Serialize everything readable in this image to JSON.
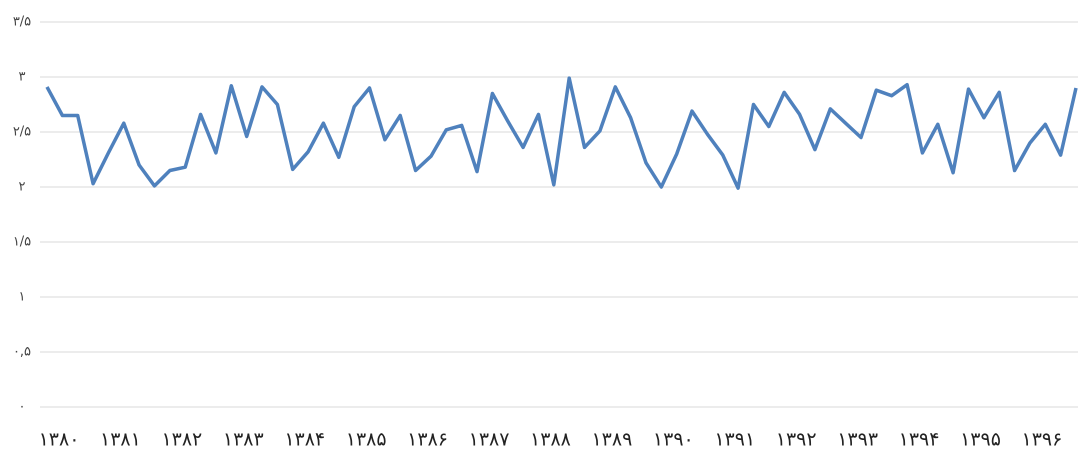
{
  "chart_data": {
    "type": "line",
    "categories": [
      "۱۳۸۰",
      null,
      null,
      null,
      "۱۳۸۱",
      null,
      null,
      null,
      "۱۳۸۲",
      null,
      null,
      null,
      "۱۳۸۳",
      null,
      null,
      null,
      "۱۳۸۴",
      null,
      null,
      null,
      "۱۳۸۵",
      null,
      null,
      null,
      "۱۳۸۶",
      null,
      null,
      null,
      "۱۳۸۷",
      null,
      null,
      null,
      "۱۳۸۸",
      null,
      null,
      null,
      "۱۳۸۹",
      null,
      null,
      null,
      "۱۳۹۰",
      null,
      null,
      null,
      "۱۳۹۱",
      null,
      null,
      null,
      "۱۳۹۲",
      null,
      null,
      null,
      "۱۳۹۳",
      null,
      null,
      null,
      "۱۳۹۴",
      null,
      null,
      null,
      "۱۳۹۵",
      null,
      null,
      null,
      "۱۳۹۶",
      null,
      null,
      null
    ],
    "series": [
      {
        "color": "#4f81bd",
        "values": [
          2.91,
          2.65,
          2.65,
          2.03,
          2.31,
          2.58,
          2.2,
          2.01,
          2.15,
          2.18,
          2.66,
          2.31,
          2.92,
          2.46,
          2.91,
          2.75,
          2.16,
          2.32,
          2.58,
          2.27,
          2.73,
          2.9,
          2.43,
          2.65,
          2.15,
          2.28,
          2.52,
          2.56,
          2.14,
          2.85,
          2.6,
          2.36,
          2.66,
          2.02,
          2.99,
          2.36,
          2.51,
          2.91,
          2.63,
          2.22,
          2.0,
          2.3,
          2.69,
          2.48,
          2.29,
          1.99,
          2.75,
          2.55,
          2.86,
          2.66,
          2.34,
          2.71,
          2.58,
          2.45,
          2.88,
          2.83,
          2.93,
          2.31,
          2.57,
          2.13,
          2.89,
          2.63,
          2.86,
          2.15,
          2.4,
          2.57,
          2.29,
          2.9
        ]
      }
    ],
    "ylim": [
      0,
      3.5
    ],
    "yticks": [
      {
        "value": 0,
        "label": "۰"
      },
      {
        "value": 0.5,
        "label": "۰,۵"
      },
      {
        "value": 1,
        "label": "۱"
      },
      {
        "value": 1.5,
        "label": "۱/۵"
      },
      {
        "value": 2,
        "label": "۲"
      },
      {
        "value": 2.5,
        "label": "۲/۵"
      },
      {
        "value": 3,
        "label": "۳"
      },
      {
        "value": 3.5,
        "label": "۳/۵"
      }
    ],
    "grid": true
  }
}
